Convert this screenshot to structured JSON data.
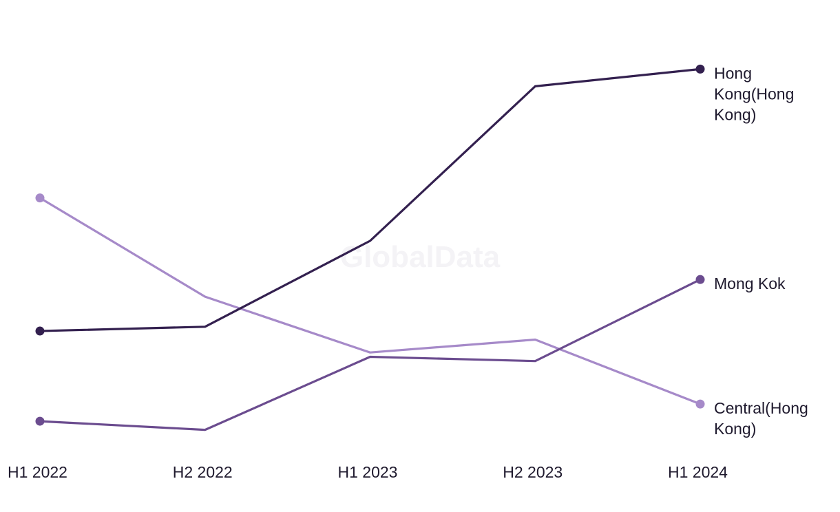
{
  "chart_data": {
    "type": "line",
    "title": "",
    "xlabel": "",
    "ylabel": "",
    "x": [
      "H1 2022",
      "H2 2022",
      "H1 2023",
      "H2 2023",
      "H1 2024"
    ],
    "ylim": [
      0,
      100
    ],
    "grid": false,
    "legend": "end-of-line labels",
    "watermark": "GlobalData",
    "series": [
      {
        "name": "Hong Kong(Hong Kong)",
        "label_lines": [
          "Hong",
          "Kong(Hong",
          "Kong)"
        ],
        "color": "#33204f",
        "values": [
          29,
          30,
          50,
          86,
          90
        ]
      },
      {
        "name": "Mong Kok",
        "label_lines": [
          "Mong Kok"
        ],
        "color": "#6b4c8f",
        "values": [
          8,
          6,
          23,
          22,
          41
        ]
      },
      {
        "name": "Central(Hong Kong)",
        "label_lines": [
          "Central(Hong",
          "Kong)"
        ],
        "color": "#a68ac9",
        "values": [
          60,
          37,
          24,
          27,
          12
        ]
      }
    ]
  }
}
